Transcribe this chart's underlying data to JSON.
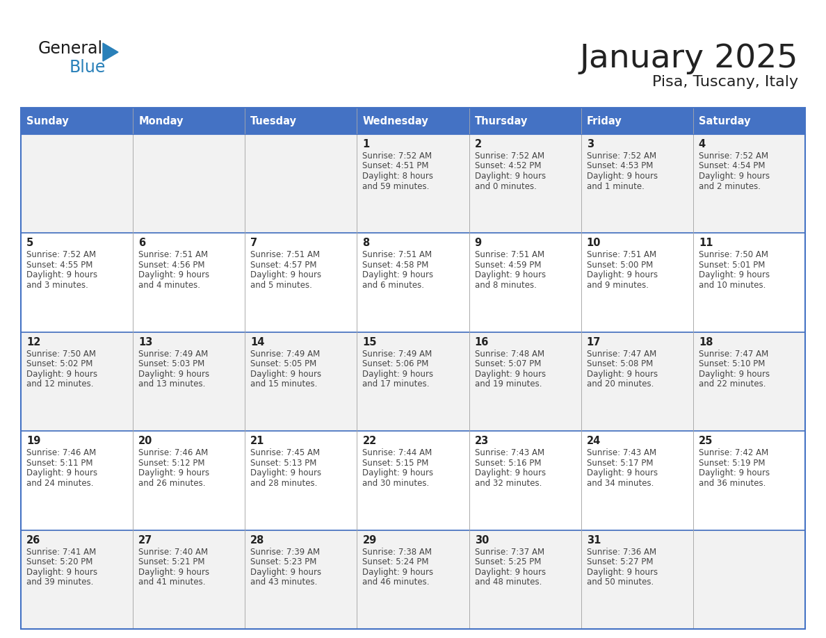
{
  "title": "January 2025",
  "subtitle": "Pisa, Tuscany, Italy",
  "days_of_week": [
    "Sunday",
    "Monday",
    "Tuesday",
    "Wednesday",
    "Thursday",
    "Friday",
    "Saturday"
  ],
  "header_bg": "#4472C4",
  "header_text": "#FFFFFF",
  "cell_bg_odd": "#F2F2F2",
  "cell_bg_even": "#FFFFFF",
  "border_color": "#4472C4",
  "grid_color": "#AAAAAA",
  "text_color": "#444444",
  "day_num_color": "#222222",
  "calendar_data": [
    [
      null,
      null,
      null,
      {
        "day": 1,
        "sunrise": "7:52 AM",
        "sunset": "4:51 PM",
        "daylight_line1": "Daylight: 8 hours",
        "daylight_line2": "and 59 minutes."
      },
      {
        "day": 2,
        "sunrise": "7:52 AM",
        "sunset": "4:52 PM",
        "daylight_line1": "Daylight: 9 hours",
        "daylight_line2": "and 0 minutes."
      },
      {
        "day": 3,
        "sunrise": "7:52 AM",
        "sunset": "4:53 PM",
        "daylight_line1": "Daylight: 9 hours",
        "daylight_line2": "and 1 minute."
      },
      {
        "day": 4,
        "sunrise": "7:52 AM",
        "sunset": "4:54 PM",
        "daylight_line1": "Daylight: 9 hours",
        "daylight_line2": "and 2 minutes."
      }
    ],
    [
      {
        "day": 5,
        "sunrise": "7:52 AM",
        "sunset": "4:55 PM",
        "daylight_line1": "Daylight: 9 hours",
        "daylight_line2": "and 3 minutes."
      },
      {
        "day": 6,
        "sunrise": "7:51 AM",
        "sunset": "4:56 PM",
        "daylight_line1": "Daylight: 9 hours",
        "daylight_line2": "and 4 minutes."
      },
      {
        "day": 7,
        "sunrise": "7:51 AM",
        "sunset": "4:57 PM",
        "daylight_line1": "Daylight: 9 hours",
        "daylight_line2": "and 5 minutes."
      },
      {
        "day": 8,
        "sunrise": "7:51 AM",
        "sunset": "4:58 PM",
        "daylight_line1": "Daylight: 9 hours",
        "daylight_line2": "and 6 minutes."
      },
      {
        "day": 9,
        "sunrise": "7:51 AM",
        "sunset": "4:59 PM",
        "daylight_line1": "Daylight: 9 hours",
        "daylight_line2": "and 8 minutes."
      },
      {
        "day": 10,
        "sunrise": "7:51 AM",
        "sunset": "5:00 PM",
        "daylight_line1": "Daylight: 9 hours",
        "daylight_line2": "and 9 minutes."
      },
      {
        "day": 11,
        "sunrise": "7:50 AM",
        "sunset": "5:01 PM",
        "daylight_line1": "Daylight: 9 hours",
        "daylight_line2": "and 10 minutes."
      }
    ],
    [
      {
        "day": 12,
        "sunrise": "7:50 AM",
        "sunset": "5:02 PM",
        "daylight_line1": "Daylight: 9 hours",
        "daylight_line2": "and 12 minutes."
      },
      {
        "day": 13,
        "sunrise": "7:49 AM",
        "sunset": "5:03 PM",
        "daylight_line1": "Daylight: 9 hours",
        "daylight_line2": "and 13 minutes."
      },
      {
        "day": 14,
        "sunrise": "7:49 AM",
        "sunset": "5:05 PM",
        "daylight_line1": "Daylight: 9 hours",
        "daylight_line2": "and 15 minutes."
      },
      {
        "day": 15,
        "sunrise": "7:49 AM",
        "sunset": "5:06 PM",
        "daylight_line1": "Daylight: 9 hours",
        "daylight_line2": "and 17 minutes."
      },
      {
        "day": 16,
        "sunrise": "7:48 AM",
        "sunset": "5:07 PM",
        "daylight_line1": "Daylight: 9 hours",
        "daylight_line2": "and 19 minutes."
      },
      {
        "day": 17,
        "sunrise": "7:47 AM",
        "sunset": "5:08 PM",
        "daylight_line1": "Daylight: 9 hours",
        "daylight_line2": "and 20 minutes."
      },
      {
        "day": 18,
        "sunrise": "7:47 AM",
        "sunset": "5:10 PM",
        "daylight_line1": "Daylight: 9 hours",
        "daylight_line2": "and 22 minutes."
      }
    ],
    [
      {
        "day": 19,
        "sunrise": "7:46 AM",
        "sunset": "5:11 PM",
        "daylight_line1": "Daylight: 9 hours",
        "daylight_line2": "and 24 minutes."
      },
      {
        "day": 20,
        "sunrise": "7:46 AM",
        "sunset": "5:12 PM",
        "daylight_line1": "Daylight: 9 hours",
        "daylight_line2": "and 26 minutes."
      },
      {
        "day": 21,
        "sunrise": "7:45 AM",
        "sunset": "5:13 PM",
        "daylight_line1": "Daylight: 9 hours",
        "daylight_line2": "and 28 minutes."
      },
      {
        "day": 22,
        "sunrise": "7:44 AM",
        "sunset": "5:15 PM",
        "daylight_line1": "Daylight: 9 hours",
        "daylight_line2": "and 30 minutes."
      },
      {
        "day": 23,
        "sunrise": "7:43 AM",
        "sunset": "5:16 PM",
        "daylight_line1": "Daylight: 9 hours",
        "daylight_line2": "and 32 minutes."
      },
      {
        "day": 24,
        "sunrise": "7:43 AM",
        "sunset": "5:17 PM",
        "daylight_line1": "Daylight: 9 hours",
        "daylight_line2": "and 34 minutes."
      },
      {
        "day": 25,
        "sunrise": "7:42 AM",
        "sunset": "5:19 PM",
        "daylight_line1": "Daylight: 9 hours",
        "daylight_line2": "and 36 minutes."
      }
    ],
    [
      {
        "day": 26,
        "sunrise": "7:41 AM",
        "sunset": "5:20 PM",
        "daylight_line1": "Daylight: 9 hours",
        "daylight_line2": "and 39 minutes."
      },
      {
        "day": 27,
        "sunrise": "7:40 AM",
        "sunset": "5:21 PM",
        "daylight_line1": "Daylight: 9 hours",
        "daylight_line2": "and 41 minutes."
      },
      {
        "day": 28,
        "sunrise": "7:39 AM",
        "sunset": "5:23 PM",
        "daylight_line1": "Daylight: 9 hours",
        "daylight_line2": "and 43 minutes."
      },
      {
        "day": 29,
        "sunrise": "7:38 AM",
        "sunset": "5:24 PM",
        "daylight_line1": "Daylight: 9 hours",
        "daylight_line2": "and 46 minutes."
      },
      {
        "day": 30,
        "sunrise": "7:37 AM",
        "sunset": "5:25 PM",
        "daylight_line1": "Daylight: 9 hours",
        "daylight_line2": "and 48 minutes."
      },
      {
        "day": 31,
        "sunrise": "7:36 AM",
        "sunset": "5:27 PM",
        "daylight_line1": "Daylight: 9 hours",
        "daylight_line2": "and 50 minutes."
      },
      null
    ]
  ],
  "logo_text_general": "General",
  "logo_text_blue": "Blue",
  "logo_color_general": "#1a1a1a",
  "logo_color_blue": "#2980B9",
  "logo_triangle_color": "#2980B9"
}
